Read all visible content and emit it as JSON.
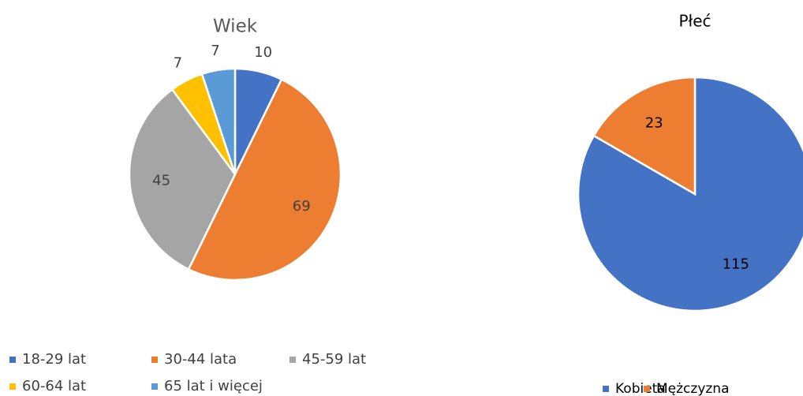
{
  "chart_data": [
    {
      "type": "pie",
      "title": "Wiek",
      "categories": [
        "18-29 lat",
        "30-44 lata",
        "45-59 lat",
        "60-64 lat",
        "65 lat i więcej"
      ],
      "values": [
        10,
        69,
        45,
        7,
        7
      ],
      "colors": [
        "#4472c4",
        "#ed7d31",
        "#a5a5a5",
        "#ffc000",
        "#5b9bd5"
      ],
      "legend": "bottom"
    },
    {
      "type": "pie",
      "title": "Płeć",
      "categories": [
        "Kobieta",
        "Mężczyzna"
      ],
      "values": [
        115,
        23
      ],
      "colors": [
        "#4472c4",
        "#ed7d31"
      ],
      "legend": "bottom"
    }
  ]
}
